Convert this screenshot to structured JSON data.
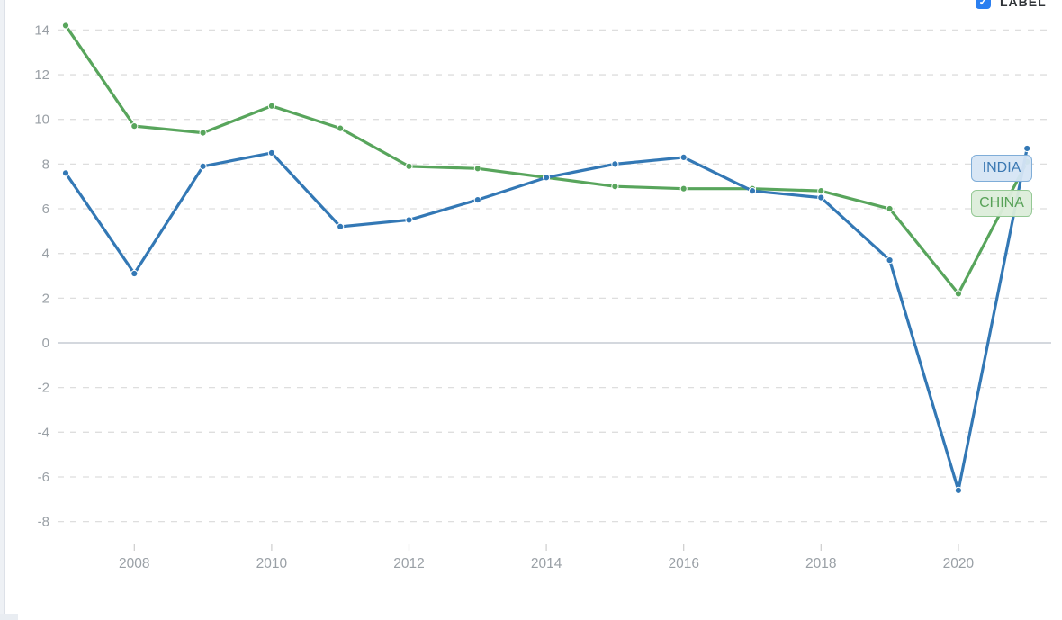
{
  "controls": {
    "label_toggle": {
      "label": "LABEL",
      "checked": true,
      "check_glyph": "✓",
      "box_color": "#2b7ff0"
    }
  },
  "legend": {
    "items": [
      {
        "label": "INDIA",
        "color": "#3378b5"
      },
      {
        "label": "CHINA",
        "color": "#58a55c"
      }
    ]
  },
  "chart_data": {
    "type": "line",
    "x": [
      2007,
      2008,
      2009,
      2010,
      2011,
      2012,
      2013,
      2014,
      2015,
      2016,
      2017,
      2018,
      2019,
      2020,
      2021
    ],
    "series": [
      {
        "name": "CHINA",
        "color": "#58a55c",
        "values": [
          14.2,
          9.7,
          9.4,
          10.6,
          9.6,
          7.9,
          7.8,
          7.4,
          7.0,
          6.9,
          6.9,
          6.8,
          6.0,
          2.2,
          8.1
        ]
      },
      {
        "name": "INDIA",
        "color": "#3378b5",
        "values": [
          7.6,
          3.1,
          7.9,
          8.5,
          5.2,
          5.5,
          6.4,
          7.4,
          8.0,
          8.3,
          6.8,
          6.5,
          3.7,
          -6.6,
          8.7
        ]
      }
    ],
    "yticks": [
      14,
      12,
      10,
      8,
      6,
      4,
      2,
      0,
      -2,
      -4,
      -6,
      -8
    ],
    "xticks": [
      2008,
      2010,
      2012,
      2014,
      2016,
      2018,
      2020
    ],
    "ylim": [
      -8.8,
      14.6
    ],
    "xlim": [
      2007,
      2021
    ],
    "title": "",
    "xlabel": "",
    "ylabel": "",
    "grid": "horizontal-dashed",
    "zero_line": true,
    "legend_position": "inside-right",
    "colors": {
      "grid": "#dedede",
      "zero_line": "#c6cbd4",
      "axis_text": "#9aa0a6",
      "tick_mark": "#cccccc"
    }
  }
}
